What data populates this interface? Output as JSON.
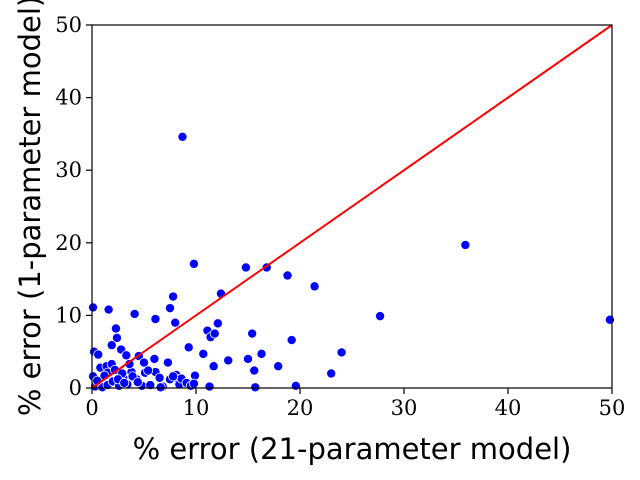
{
  "chart_data": {
    "type": "scatter",
    "xlabel": "% error (21-parameter model)",
    "ylabel": "% error (1-parameter model)",
    "xlim": [
      0,
      50
    ],
    "ylim": [
      0,
      50
    ],
    "xticks": [
      "0",
      "10",
      "20",
      "30",
      "40",
      "50"
    ],
    "yticks": [
      "0",
      "10",
      "20",
      "30",
      "40",
      "50"
    ],
    "grid": false,
    "legend": "none",
    "point_color": "#0000ff",
    "reference_line": {
      "from": [
        0,
        0
      ],
      "to": [
        50,
        50
      ],
      "color": "#ff0000"
    },
    "points": [
      [
        0.1,
        11.1
      ],
      [
        0.2,
        5.0
      ],
      [
        0.6,
        4.6
      ],
      [
        0.1,
        1.6
      ],
      [
        0.8,
        2.8
      ],
      [
        1.4,
        3.0
      ],
      [
        1.6,
        10.8
      ],
      [
        1.9,
        3.3
      ],
      [
        2.3,
        8.2
      ],
      [
        2.4,
        6.9
      ],
      [
        2.8,
        5.3
      ],
      [
        1.9,
        5.9
      ],
      [
        0.3,
        0.2
      ],
      [
        1.0,
        0.1
      ],
      [
        1.5,
        0.4
      ],
      [
        2.0,
        0.9
      ],
      [
        2.6,
        0.3
      ],
      [
        3.0,
        1.4
      ],
      [
        3.4,
        0.5
      ],
      [
        3.8,
        2.2
      ],
      [
        4.3,
        1.2
      ],
      [
        4.8,
        0.3
      ],
      [
        1.5,
        2.1
      ],
      [
        2.2,
        2.5
      ],
      [
        3.3,
        4.5
      ],
      [
        3.6,
        3.3
      ],
      [
        4.1,
        10.2
      ],
      [
        4.5,
        4.4
      ],
      [
        5.0,
        3.5
      ],
      [
        5.1,
        2.1
      ],
      [
        5.6,
        0.4
      ],
      [
        6.0,
        4.0
      ],
      [
        6.1,
        2.2
      ],
      [
        6.1,
        9.5
      ],
      [
        6.5,
        1.4
      ],
      [
        6.8,
        0.2
      ],
      [
        7.3,
        3.5
      ],
      [
        7.5,
        1.2
      ],
      [
        7.5,
        11.0
      ],
      [
        7.8,
        12.6
      ],
      [
        8.0,
        9.0
      ],
      [
        8.1,
        1.8
      ],
      [
        8.3,
        1.2
      ],
      [
        8.4,
        0.5
      ],
      [
        8.6,
        1.3
      ],
      [
        8.7,
        34.6
      ],
      [
        9.1,
        0.7
      ],
      [
        9.3,
        5.6
      ],
      [
        9.5,
        0.3
      ],
      [
        9.8,
        17.1
      ],
      [
        9.9,
        1.7
      ],
      [
        10.7,
        4.7
      ],
      [
        11.1,
        7.9
      ],
      [
        11.3,
        0.2
      ],
      [
        11.4,
        7.0
      ],
      [
        11.7,
        3.0
      ],
      [
        11.8,
        7.5
      ],
      [
        12.1,
        8.9
      ],
      [
        12.4,
        13.0
      ],
      [
        13.1,
        3.8
      ],
      [
        14.8,
        16.6
      ],
      [
        15.0,
        4.0
      ],
      [
        15.4,
        7.5
      ],
      [
        15.6,
        2.4
      ],
      [
        15.7,
        0.1
      ],
      [
        16.3,
        4.7
      ],
      [
        16.8,
        16.6
      ],
      [
        17.9,
        3.0
      ],
      [
        18.8,
        15.5
      ],
      [
        19.2,
        6.6
      ],
      [
        19.6,
        0.3
      ],
      [
        21.4,
        14.0
      ],
      [
        23.0,
        2.0
      ],
      [
        24.0,
        4.9
      ],
      [
        27.7,
        9.9
      ],
      [
        35.9,
        19.7
      ],
      [
        49.8,
        9.4
      ],
      [
        2.9,
        2.0
      ],
      [
        3.9,
        1.6
      ],
      [
        5.4,
        2.4
      ],
      [
        4.4,
        0.8
      ],
      [
        6.6,
        0.1
      ],
      [
        7.8,
        1.6
      ],
      [
        1.2,
        1.7
      ],
      [
        2.5,
        1.2
      ],
      [
        0.5,
        1.0
      ],
      [
        3.1,
        0.7
      ],
      [
        9.8,
        0.6
      ]
    ]
  }
}
